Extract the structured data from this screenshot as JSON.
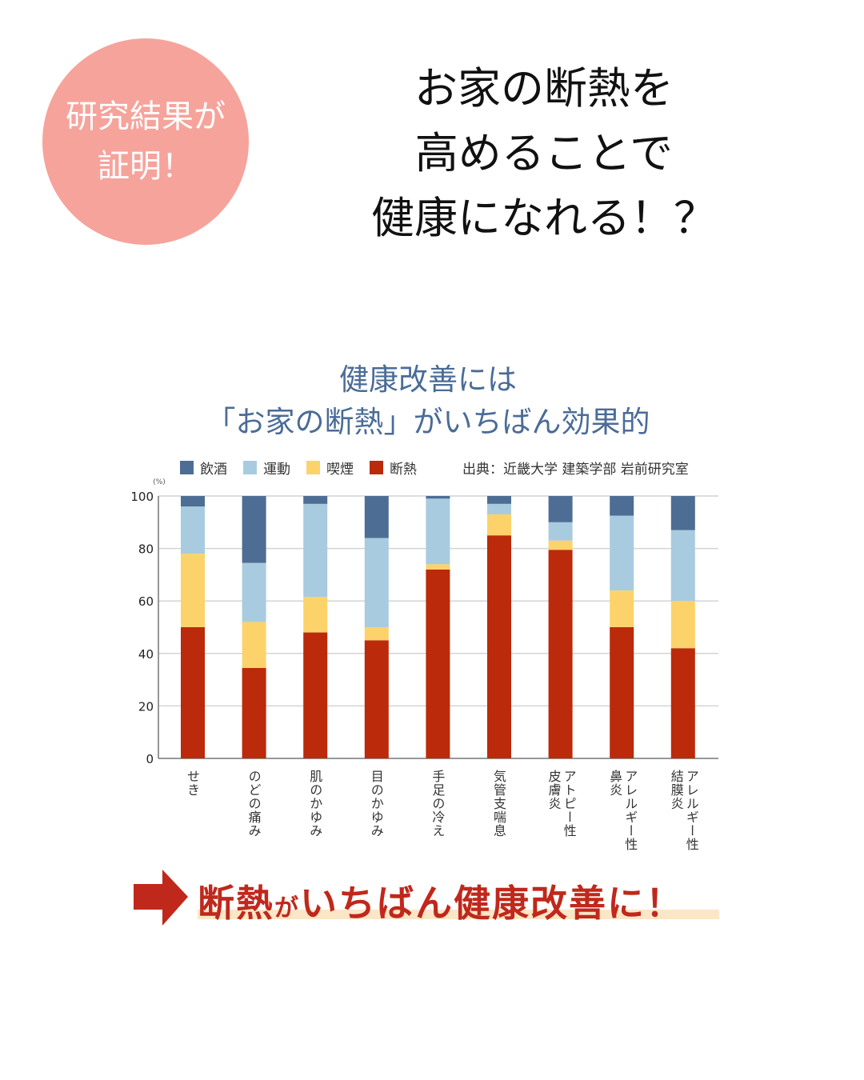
{
  "badge": {
    "line1": "研究結果が",
    "line2": "証明！"
  },
  "headline": {
    "line1": "お家の断熱を",
    "line2": "高めることで",
    "line3": "健康になれる！？"
  },
  "chart_data": {
    "type": "bar",
    "stacked": true,
    "title": "健康改善には",
    "subtitle": "「お家の断熱」がいちばん効果的",
    "source": "出典：近畿大学 建築学部 岩前研究室",
    "ylabel": "(%)",
    "ylim": [
      0,
      100
    ],
    "yticks": [
      0,
      20,
      40,
      60,
      80,
      100
    ],
    "grid": true,
    "legend_position": "top-left",
    "categories": [
      "せき",
      "のどの痛み",
      "肌のかゆみ",
      "目のかゆみ",
      "手足の冷え",
      "気管支喘息",
      "アトピー性\n皮膚炎",
      "アレルギー性\n鼻炎",
      "アレルギー性\n結膜炎"
    ],
    "series": [
      {
        "name": "断熱",
        "color": "#bb2a0a",
        "values": [
          50,
          34.5,
          48,
          45,
          72,
          85,
          79.5,
          50,
          42
        ]
      },
      {
        "name": "喫煙",
        "color": "#fcd36a",
        "values": [
          28,
          17.5,
          13.5,
          5,
          2,
          8,
          3.5,
          14,
          18
        ]
      },
      {
        "name": "運動",
        "color": "#a9cbe0",
        "values": [
          18,
          22.5,
          35.5,
          34,
          25,
          4,
          7,
          28.5,
          27
        ]
      },
      {
        "name": "飲酒",
        "color": "#4e6d94",
        "values": [
          4,
          25.5,
          3,
          16,
          1,
          3,
          10,
          7.5,
          13
        ]
      }
    ],
    "legend_order": [
      "飲酒",
      "運動",
      "喫煙",
      "断熱"
    ]
  },
  "banner": {
    "part1": "断熱",
    "part2": "が",
    "part3": "いちばん健康改善に！",
    "arrow_color": "#c0281b"
  }
}
